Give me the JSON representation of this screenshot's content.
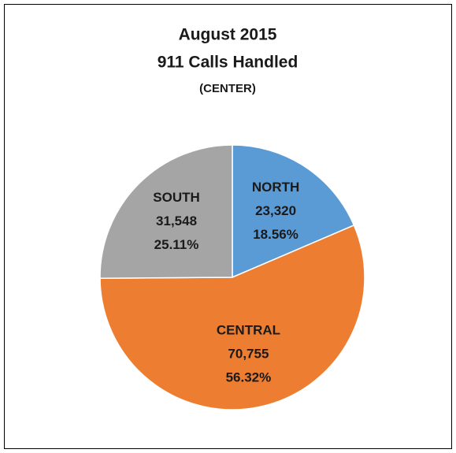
{
  "chart_data": {
    "type": "pie",
    "title": "August 2015",
    "subtitle": "911 Calls Handled",
    "note": "(CENTER)",
    "categories": [
      "NORTH",
      "CENTRAL",
      "SOUTH"
    ],
    "values": [
      23320,
      70755,
      31548
    ],
    "value_labels": [
      "23,320",
      "70,755",
      "31,548"
    ],
    "percent_labels": [
      "18.56%",
      "56.32%",
      "25.11%"
    ],
    "colors": [
      "#5b9bd5",
      "#ed7d31",
      "#a5a5a5"
    ]
  }
}
